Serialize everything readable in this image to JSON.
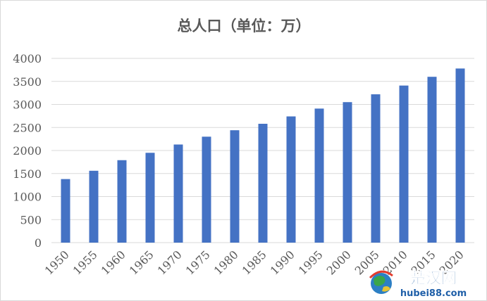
{
  "chart_data": {
    "type": "bar",
    "title": "总人口（单位：万）",
    "xlabel": "",
    "ylabel": "",
    "categories": [
      "1950",
      "1955",
      "1960",
      "1965",
      "1970",
      "1975",
      "1980",
      "1985",
      "1990",
      "1995",
      "2000",
      "2005",
      "2010",
      "2015",
      "2020"
    ],
    "values": [
      1380,
      1560,
      1790,
      1950,
      2130,
      2300,
      2440,
      2580,
      2740,
      2910,
      3050,
      3220,
      3410,
      3600,
      3780
    ],
    "ylim": [
      0,
      4000
    ],
    "yticks": [
      0,
      500,
      1000,
      1500,
      2000,
      2500,
      3000,
      3500,
      4000
    ],
    "grid": true,
    "legend": "none",
    "bar_color": "#4472c4",
    "grid_color": "#d9d9d9"
  },
  "watermark": {
    "name": "楚汉网",
    "url": "hubei88.com"
  }
}
